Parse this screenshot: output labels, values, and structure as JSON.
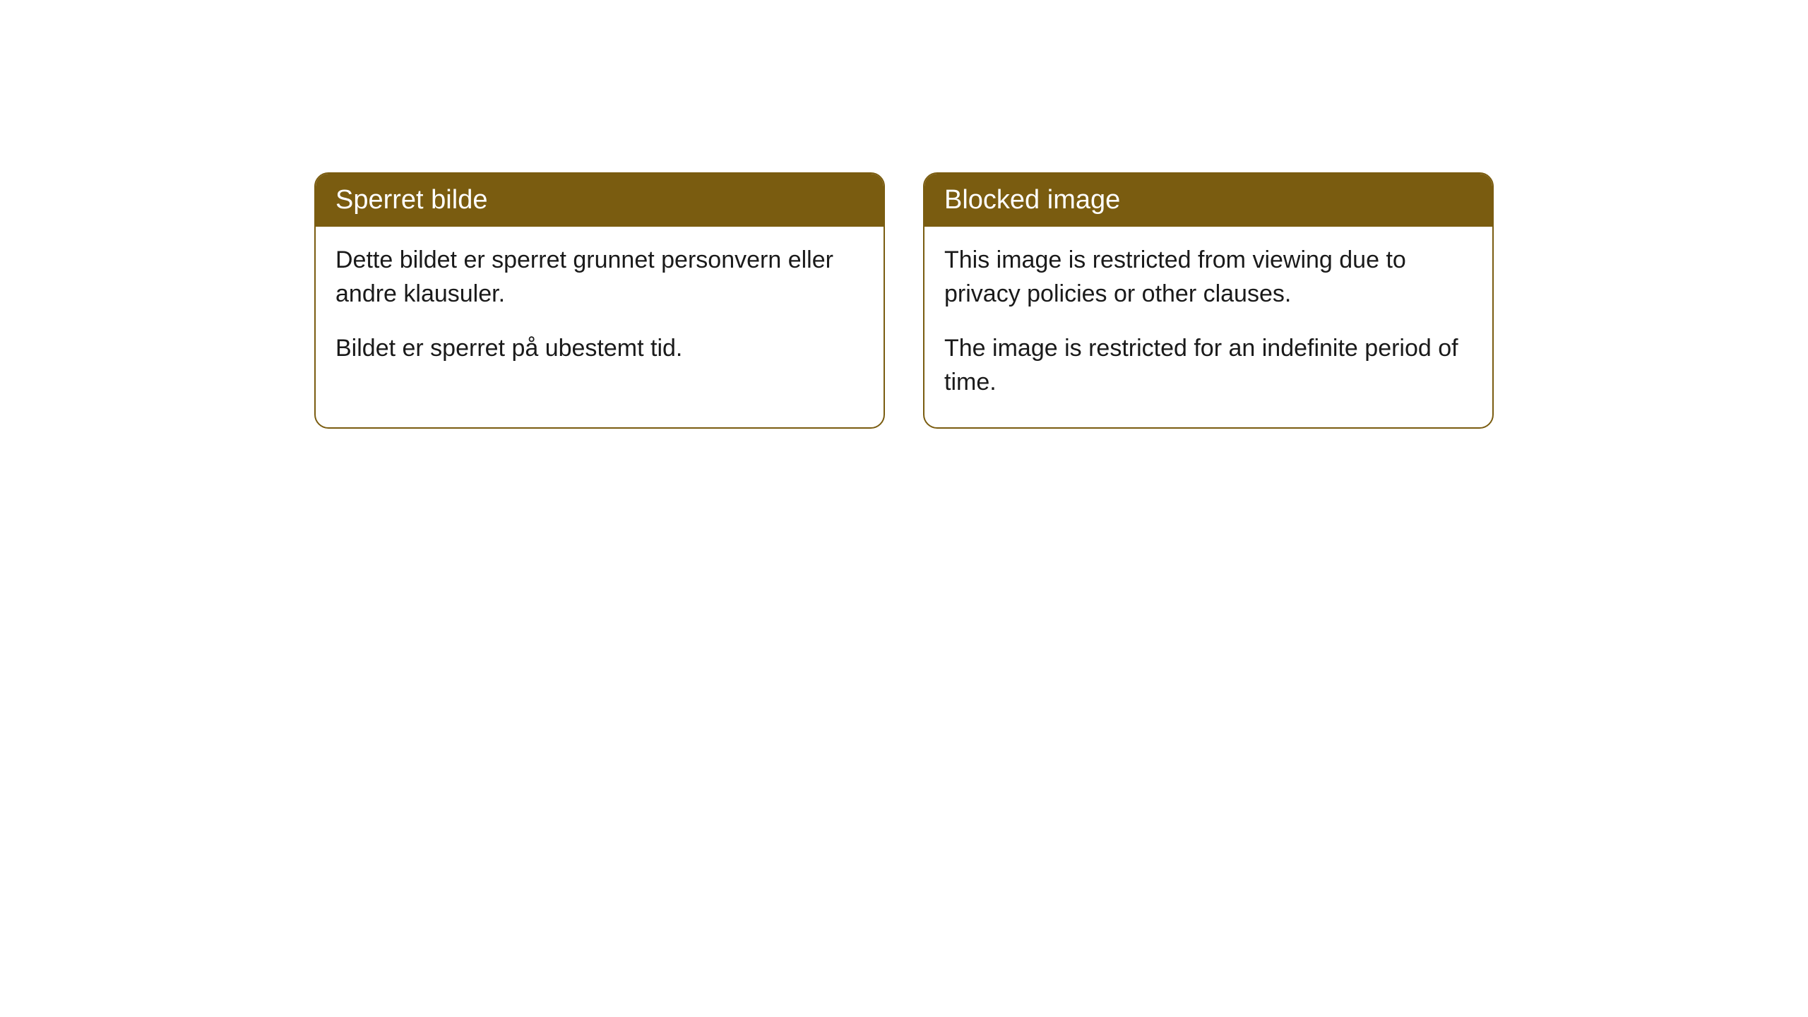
{
  "cards": [
    {
      "title": "Sperret bilde",
      "paragraph1": "Dette bildet er sperret grunnet personvern eller andre klausuler.",
      "paragraph2": "Bildet er sperret på ubestemt tid."
    },
    {
      "title": "Blocked image",
      "paragraph1": "This image is restricted from viewing due to privacy policies or other clauses.",
      "paragraph2": "The image is restricted for an indefinite period of time."
    }
  ],
  "style": {
    "header_background": "#7a5c10",
    "header_text_color": "#ffffff",
    "border_color": "#7a5c10",
    "body_background": "#ffffff",
    "body_text_color": "#1a1a1a",
    "border_radius": 20,
    "title_fontsize": 38,
    "body_fontsize": 34
  }
}
